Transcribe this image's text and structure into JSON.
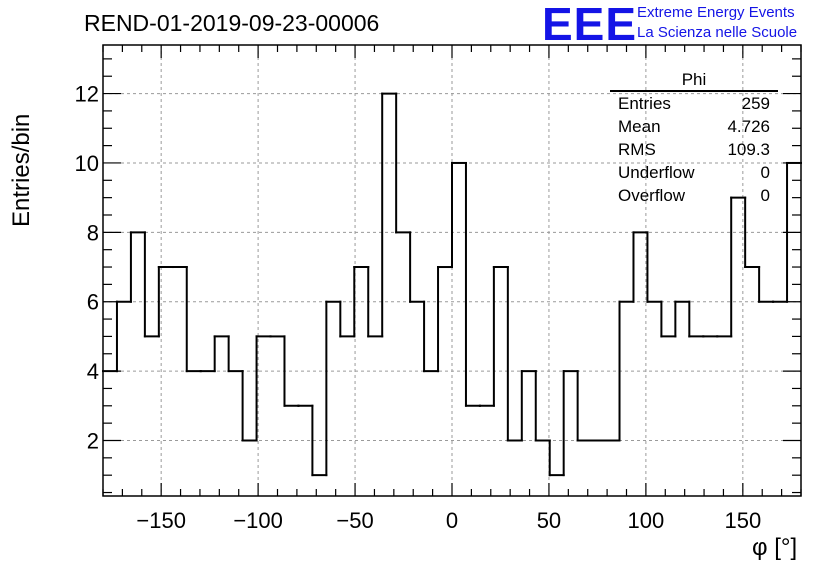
{
  "chart_data": {
    "type": "histogram",
    "title": "REND-01-2019-09-23-00006",
    "xlabel": "φ [°]",
    "ylabel": "Entries/bin",
    "xlim": [
      -180,
      180
    ],
    "ylim": [
      0.4,
      13.4
    ],
    "xticks": [
      -150,
      -100,
      -50,
      0,
      50,
      100,
      150
    ],
    "yticks": [
      2,
      4,
      6,
      8,
      10,
      12
    ],
    "grid": true,
    "bin_edges": [
      -180,
      -172.8,
      -165.6,
      -158.4,
      -151.2,
      -144,
      -136.8,
      -129.6,
      -122.4,
      -115.2,
      -108,
      -100.8,
      -93.6,
      -86.4,
      -79.2,
      -72,
      -64.8,
      -57.6,
      -50.4,
      -43.2,
      -36,
      -28.8,
      -21.6,
      -14.4,
      -7.2,
      0,
      7.2,
      14.4,
      21.6,
      28.8,
      36,
      43.2,
      50.4,
      57.6,
      64.8,
      72,
      79.2,
      86.4,
      93.6,
      100.8,
      108,
      115.2,
      122.4,
      129.6,
      136.8,
      144,
      151.2,
      158.4,
      165.6,
      172.8,
      180
    ],
    "values": [
      4,
      6,
      8,
      5,
      7,
      7,
      4,
      4,
      5,
      4,
      2,
      5,
      5,
      3,
      3,
      1,
      6,
      5,
      7,
      5,
      12,
      8,
      6,
      4,
      7,
      10,
      3,
      3,
      7,
      2,
      4,
      2,
      1,
      4,
      2,
      2,
      2,
      6,
      8,
      6,
      5,
      6,
      5,
      5,
      5,
      9,
      7,
      6,
      6,
      10
    ],
    "stats": {
      "name": "Phi",
      "rows": [
        {
          "label": "Entries",
          "value": "259"
        },
        {
          "label": "Mean",
          "value": "4.726"
        },
        {
          "label": "RMS",
          "value": "109.3"
        },
        {
          "label": "Underflow",
          "value": "0"
        },
        {
          "label": "Overflow",
          "value": "0"
        }
      ]
    }
  },
  "logo": {
    "mark": "EEE",
    "line1": "Extreme Energy Events",
    "line2": "La Scienza nelle Scuole"
  },
  "colors": {
    "line": "#000000",
    "grid": "#9a9a9a",
    "logo": "#1414e6"
  }
}
